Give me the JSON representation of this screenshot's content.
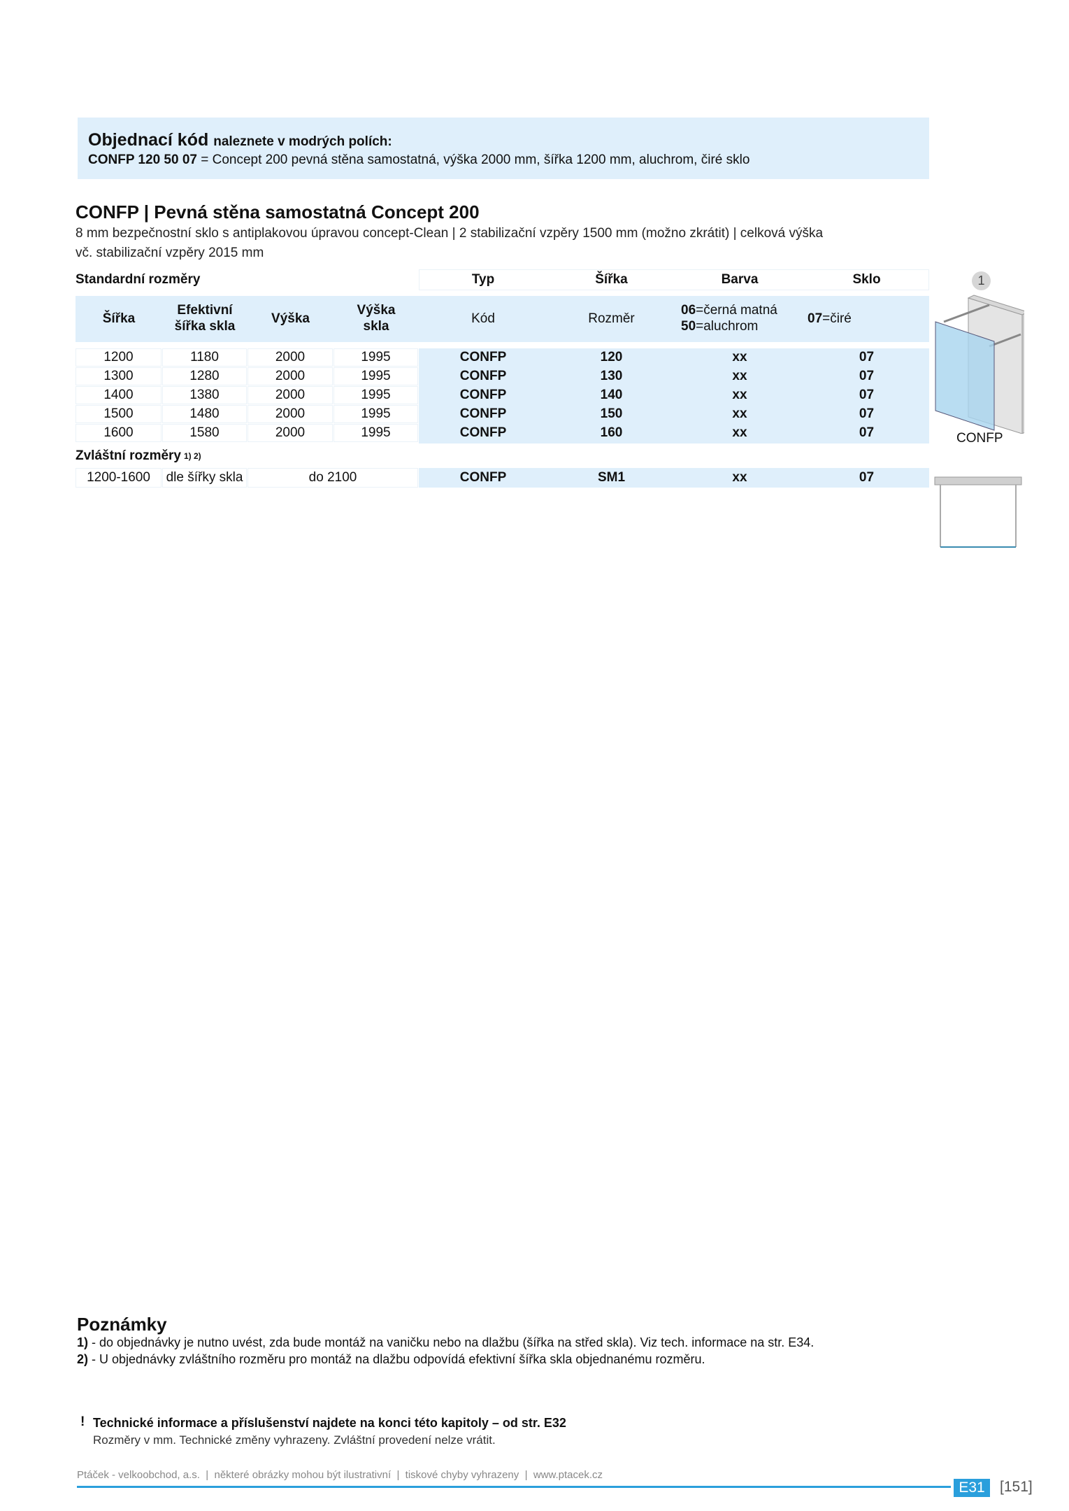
{
  "order_box": {
    "heading": "Objednací kód",
    "heading_suffix": "naleznete v modrých  polích:",
    "example_code": "CONFP 120 50 07",
    "example_text": " = Concept 200 pevná stěna samostatná, výška 2000 mm, šířka 1200 mm, aluchrom, čiré sklo"
  },
  "product": {
    "title": "CONFP | Pevná stěna samostatná Concept 200",
    "desc_line1": "8 mm bezpečnostní sklo s antiplakovou úpravou concept-Clean | 2 stabilizační vzpěry 1500 mm (možno zkrátit) | celková výška",
    "desc_line2": "vč. stabilizační vzpěry 2015 mm"
  },
  "table": {
    "section_standard": "Standardní rozměry",
    "group_headers": [
      "Typ",
      "Šířka",
      "Barva",
      "Sklo"
    ],
    "col_headers": [
      "Šířka",
      "Efektivní šířka skla",
      "Výška",
      "Výška skla"
    ],
    "code_headers": [
      "Kód",
      "Rozměr"
    ],
    "barva_options": [
      {
        "code": "06",
        "label": "=černá matná"
      },
      {
        "code": "50",
        "label": "=aluchrom"
      }
    ],
    "sklo_option": {
      "code": "07",
      "label": "=čiré"
    },
    "rows": [
      [
        "1200",
        "1180",
        "2000",
        "1995",
        "CONFP",
        "120",
        "xx",
        "07"
      ],
      [
        "1300",
        "1280",
        "2000",
        "1995",
        "CONFP",
        "130",
        "xx",
        "07"
      ],
      [
        "1400",
        "1380",
        "2000",
        "1995",
        "CONFP",
        "140",
        "xx",
        "07"
      ],
      [
        "1500",
        "1480",
        "2000",
        "1995",
        "CONFP",
        "150",
        "xx",
        "07"
      ],
      [
        "1600",
        "1580",
        "2000",
        "1995",
        "CONFP",
        "160",
        "xx",
        "07"
      ]
    ],
    "section_special": "Zvláštní rozměry",
    "special_sup": "1) 2)",
    "special_row": [
      "1200-1600",
      "dle šířky skla",
      "do 2100",
      "CONFP",
      "SM1",
      "xx",
      "07"
    ]
  },
  "illustration": {
    "badge": "1",
    "caption": "CONFP"
  },
  "notes": {
    "heading": "Poznámky",
    "items": [
      {
        "n": "1)",
        "t": " - do objednávky je nutno uvést, zda bude montáž na vaničku nebo na dlažbu (šířka na střed skla). Viz tech. informace na str. E34."
      },
      {
        "n": "2)",
        "t": " - U objednávky zvláštního rozměru pro montáž na dlažbu odpovídá efektivní šířka skla objednanému rozměru."
      }
    ]
  },
  "info": {
    "mark": "!",
    "title": "Technické informace a příslušenství najdete na konci této kapitoly – od str. E32",
    "sub": "Rozměry v mm. Technické změny vyhrazeny. Zvláštní provedení nelze vrátit."
  },
  "footer": {
    "text": "Ptáček - velkoobchod, a.s.  |  některé obrázky mohou být ilustrativní  |  tiskové chyby vyhrazeny  |  www.ptacek.cz",
    "section": "E31",
    "page": "[151]"
  },
  "colors": {
    "accent": "#2a9fdc",
    "field_blue": "#dfeffb"
  }
}
